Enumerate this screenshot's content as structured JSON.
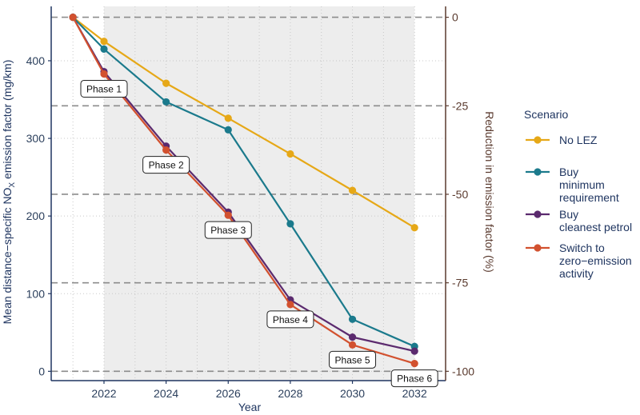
{
  "chart_data": {
    "type": "line",
    "x": [
      2021,
      2022,
      2024,
      2026,
      2028,
      2030,
      2032
    ],
    "xlabel": "Year",
    "ylabel_main": "Mean distance−specific NO",
    "ylabel_sub": "X",
    "ylabel_tail": " emission factor (mg/km)",
    "ylabel_right": "Reduction in emission factor (%)",
    "xlim": [
      2020.3,
      2033
    ],
    "ylim": [
      -12,
      470
    ],
    "x_ticks": [
      2022,
      2024,
      2026,
      2028,
      2030,
      2032
    ],
    "y_ticks": [
      0,
      100,
      200,
      300,
      400
    ],
    "right_ticks": [
      0,
      -25,
      -50,
      -75,
      -100
    ],
    "right_base": 456,
    "shaded_x": [
      2022,
      2032
    ],
    "legend_title": "Scenario",
    "legend_position": "right",
    "series": [
      {
        "name": [
          "No LEZ"
        ],
        "color": "#e6a817",
        "values": [
          456,
          425,
          371,
          326,
          280,
          233,
          185
        ]
      },
      {
        "name": [
          "Buy",
          "minimum",
          "requirement"
        ],
        "color": "#1b7a8c",
        "values": [
          456,
          415,
          347,
          311,
          190,
          67,
          32
        ]
      },
      {
        "name": [
          "Buy",
          "cleanest petrol"
        ],
        "color": "#5b2a6e",
        "values": [
          456,
          386,
          290,
          205,
          92,
          44,
          26
        ]
      },
      {
        "name": [
          "Switch to",
          "zero−emission",
          "activity"
        ],
        "color": "#d2512f",
        "values": [
          456,
          383,
          285,
          201,
          86,
          34,
          10
        ]
      }
    ],
    "annotations": [
      {
        "text": "Phase 1",
        "x": 2022,
        "y": 383
      },
      {
        "text": "Phase 2",
        "x": 2024,
        "y": 285
      },
      {
        "text": "Phase 3",
        "x": 2026,
        "y": 201
      },
      {
        "text": "Phase 4",
        "x": 2028,
        "y": 86
      },
      {
        "text": "Phase 5",
        "x": 2030,
        "y": 34
      },
      {
        "text": "Phase 6",
        "x": 2032,
        "y": 10
      }
    ]
  }
}
